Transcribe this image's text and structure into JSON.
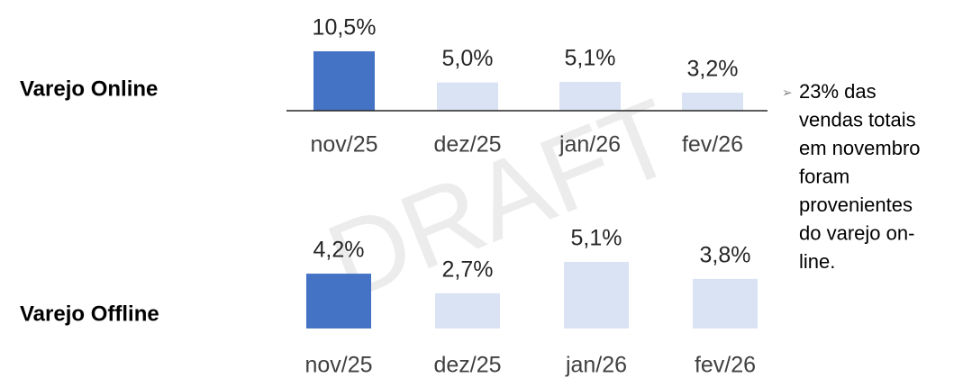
{
  "chart_data": [
    {
      "type": "bar",
      "title": "Varejo Online",
      "categories": [
        "nov/25",
        "dez/25",
        "jan/26",
        "fev/26"
      ],
      "values": [
        10.5,
        5.0,
        5.1,
        3.2
      ],
      "value_labels": [
        "10,5%",
        "5,0%",
        "5,1%",
        "3,2%"
      ],
      "colors": [
        "#4472c4",
        "#dae3f3",
        "#dae3f3",
        "#dae3f3"
      ]
    },
    {
      "type": "bar",
      "title": "Varejo Offline",
      "categories": [
        "nov/25",
        "dez/25",
        "jan/26",
        "fev/26"
      ],
      "values": [
        4.2,
        2.7,
        5.1,
        3.8
      ],
      "value_labels": [
        "4,2%",
        "2,7%",
        "5,1%",
        "3,8%"
      ],
      "colors": [
        "#4472c4",
        "#dae3f3",
        "#dae3f3",
        "#dae3f3"
      ]
    }
  ],
  "note": {
    "lines": [
      "23% das",
      "vendas totais",
      "em novembro",
      "foram",
      "provenientes",
      "do varejo on-",
      "line."
    ]
  },
  "watermark": "DRAFT"
}
